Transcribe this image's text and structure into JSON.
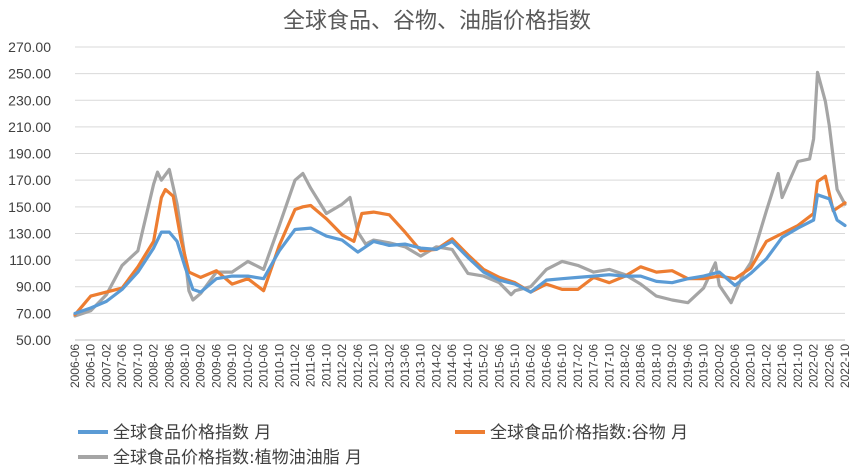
{
  "chart_data": {
    "type": "line",
    "title": "全球食品、谷物、油脂价格指数",
    "xlabel": "",
    "ylabel": "",
    "ylim": [
      50,
      270
    ],
    "yticks": [
      "50.00",
      "70.00",
      "90.00",
      "110.00",
      "130.00",
      "150.00",
      "170.00",
      "190.00",
      "210.00",
      "230.00",
      "250.00",
      "270.00"
    ],
    "x_start": "2006-06",
    "x_end": "2022-10",
    "xticks": [
      "2006-06",
      "2006-10",
      "2007-02",
      "2007-06",
      "2007-10",
      "2008-02",
      "2008-06",
      "2008-10",
      "2009-02",
      "2009-06",
      "2009-10",
      "2010-02",
      "2010-06",
      "2010-10",
      "2011-02",
      "2011-06",
      "2011-10",
      "2012-02",
      "2012-06",
      "2012-10",
      "2013-02",
      "2013-06",
      "2013-10",
      "2014-02",
      "2014-06",
      "2014-10",
      "2015-02",
      "2015-06",
      "2015-10",
      "2016-02",
      "2016-06",
      "2016-10",
      "2017-02",
      "2017-06",
      "2017-10",
      "2018-02",
      "2018-06",
      "2018-10",
      "2019-02",
      "2019-06",
      "2019-10",
      "2020-02",
      "2020-06",
      "2020-10",
      "2021-02",
      "2021-06",
      "2021-10",
      "2022-02",
      "2022-06",
      "2022-10"
    ],
    "grid": true,
    "legend_position": "bottom",
    "series": [
      {
        "name": "全球食品价格指数 月",
        "color": "#5b9bd5",
        "points": [
          [
            "2006-06",
            70
          ],
          [
            "2006-10",
            74
          ],
          [
            "2007-02",
            79
          ],
          [
            "2007-06",
            88
          ],
          [
            "2007-10",
            101
          ],
          [
            "2008-02",
            119
          ],
          [
            "2008-04",
            131
          ],
          [
            "2008-06",
            131
          ],
          [
            "2008-08",
            124
          ],
          [
            "2008-10",
            105
          ],
          [
            "2008-12",
            88
          ],
          [
            "2009-02",
            86
          ],
          [
            "2009-06",
            96
          ],
          [
            "2009-10",
            98
          ],
          [
            "2010-02",
            98
          ],
          [
            "2010-06",
            96
          ],
          [
            "2010-10",
            117
          ],
          [
            "2011-02",
            133
          ],
          [
            "2011-06",
            134
          ],
          [
            "2011-10",
            128
          ],
          [
            "2012-02",
            125
          ],
          [
            "2012-06",
            116
          ],
          [
            "2012-10",
            124
          ],
          [
            "2013-02",
            121
          ],
          [
            "2013-06",
            122
          ],
          [
            "2013-10",
            119
          ],
          [
            "2014-02",
            118
          ],
          [
            "2014-06",
            124
          ],
          [
            "2014-10",
            112
          ],
          [
            "2015-02",
            101
          ],
          [
            "2015-06",
            95
          ],
          [
            "2015-10",
            92
          ],
          [
            "2016-02",
            86
          ],
          [
            "2016-06",
            95
          ],
          [
            "2016-10",
            96
          ],
          [
            "2017-02",
            97
          ],
          [
            "2017-06",
            98
          ],
          [
            "2017-10",
            99
          ],
          [
            "2018-02",
            98
          ],
          [
            "2018-06",
            98
          ],
          [
            "2018-10",
            94
          ],
          [
            "2019-02",
            93
          ],
          [
            "2019-06",
            96
          ],
          [
            "2019-10",
            98
          ],
          [
            "2020-02",
            101
          ],
          [
            "2020-06",
            91
          ],
          [
            "2020-10",
            100
          ],
          [
            "2021-02",
            111
          ],
          [
            "2021-06",
            127
          ],
          [
            "2021-10",
            134
          ],
          [
            "2022-02",
            140
          ],
          [
            "2022-03",
            159
          ],
          [
            "2022-06",
            156
          ],
          [
            "2022-08",
            140
          ],
          [
            "2022-10",
            136
          ]
        ]
      },
      {
        "name": "全球食品价格指数:谷物 月",
        "color": "#ed7d31",
        "points": [
          [
            "2006-06",
            69
          ],
          [
            "2006-10",
            83
          ],
          [
            "2007-02",
            86
          ],
          [
            "2007-06",
            89
          ],
          [
            "2007-10",
            105
          ],
          [
            "2008-02",
            124
          ],
          [
            "2008-04",
            157
          ],
          [
            "2008-05",
            163
          ],
          [
            "2008-07",
            158
          ],
          [
            "2008-09",
            125
          ],
          [
            "2008-11",
            101
          ],
          [
            "2009-02",
            97
          ],
          [
            "2009-06",
            102
          ],
          [
            "2009-10",
            92
          ],
          [
            "2010-02",
            96
          ],
          [
            "2010-06",
            87
          ],
          [
            "2010-10",
            121
          ],
          [
            "2011-02",
            148
          ],
          [
            "2011-04",
            150
          ],
          [
            "2011-06",
            151
          ],
          [
            "2011-10",
            141
          ],
          [
            "2012-02",
            129
          ],
          [
            "2012-05",
            124
          ],
          [
            "2012-07",
            145
          ],
          [
            "2012-10",
            146
          ],
          [
            "2013-02",
            144
          ],
          [
            "2013-06",
            131
          ],
          [
            "2013-10",
            117
          ],
          [
            "2014-02",
            118
          ],
          [
            "2014-06",
            126
          ],
          [
            "2014-10",
            114
          ],
          [
            "2015-02",
            103
          ],
          [
            "2015-06",
            97
          ],
          [
            "2015-10",
            93
          ],
          [
            "2016-02",
            86
          ],
          [
            "2016-06",
            92
          ],
          [
            "2016-10",
            88
          ],
          [
            "2017-02",
            88
          ],
          [
            "2017-06",
            97
          ],
          [
            "2017-10",
            93
          ],
          [
            "2018-02",
            98
          ],
          [
            "2018-06",
            105
          ],
          [
            "2018-10",
            101
          ],
          [
            "2019-02",
            102
          ],
          [
            "2019-06",
            96
          ],
          [
            "2019-10",
            96
          ],
          [
            "2020-02",
            98
          ],
          [
            "2020-06",
            96
          ],
          [
            "2020-10",
            104
          ],
          [
            "2021-02",
            124
          ],
          [
            "2021-06",
            130
          ],
          [
            "2021-10",
            136
          ],
          [
            "2022-02",
            145
          ],
          [
            "2022-03",
            169
          ],
          [
            "2022-05",
            173
          ],
          [
            "2022-07",
            147
          ],
          [
            "2022-10",
            153
          ]
        ]
      },
      {
        "name": "全球食品价格指数:植物油油脂 月",
        "color": "#a5a5a5",
        "points": [
          [
            "2006-06",
            68
          ],
          [
            "2006-10",
            72
          ],
          [
            "2007-02",
            84
          ],
          [
            "2007-06",
            106
          ],
          [
            "2007-10",
            117
          ],
          [
            "2008-02",
            167
          ],
          [
            "2008-03",
            176
          ],
          [
            "2008-04",
            170
          ],
          [
            "2008-06",
            178
          ],
          [
            "2008-08",
            152
          ],
          [
            "2008-10",
            112
          ],
          [
            "2008-11",
            87
          ],
          [
            "2008-12",
            80
          ],
          [
            "2009-02",
            85
          ],
          [
            "2009-06",
            101
          ],
          [
            "2009-10",
            101
          ],
          [
            "2010-02",
            109
          ],
          [
            "2010-06",
            103
          ],
          [
            "2010-10",
            136
          ],
          [
            "2011-02",
            170
          ],
          [
            "2011-04",
            175
          ],
          [
            "2011-06",
            164
          ],
          [
            "2011-10",
            145
          ],
          [
            "2012-02",
            152
          ],
          [
            "2012-04",
            157
          ],
          [
            "2012-06",
            131
          ],
          [
            "2012-08",
            122
          ],
          [
            "2012-10",
            125
          ],
          [
            "2013-02",
            123
          ],
          [
            "2013-06",
            120
          ],
          [
            "2013-10",
            113
          ],
          [
            "2014-02",
            120
          ],
          [
            "2014-06",
            118
          ],
          [
            "2014-10",
            100
          ],
          [
            "2015-02",
            98
          ],
          [
            "2015-06",
            93
          ],
          [
            "2015-09",
            84
          ],
          [
            "2015-10",
            87
          ],
          [
            "2016-02",
            90
          ],
          [
            "2016-06",
            103
          ],
          [
            "2016-10",
            109
          ],
          [
            "2017-02",
            106
          ],
          [
            "2017-06",
            101
          ],
          [
            "2017-10",
            103
          ],
          [
            "2018-02",
            99
          ],
          [
            "2018-06",
            92
          ],
          [
            "2018-10",
            83
          ],
          [
            "2019-02",
            80
          ],
          [
            "2019-06",
            78
          ],
          [
            "2019-10",
            89
          ],
          [
            "2020-01",
            108
          ],
          [
            "2020-02",
            91
          ],
          [
            "2020-05",
            78
          ],
          [
            "2020-08",
            99
          ],
          [
            "2020-10",
            108
          ],
          [
            "2021-02",
            147
          ],
          [
            "2021-05",
            175
          ],
          [
            "2021-06",
            157
          ],
          [
            "2021-10",
            184
          ],
          [
            "2022-01",
            186
          ],
          [
            "2022-02",
            201
          ],
          [
            "2022-03",
            251
          ],
          [
            "2022-05",
            229
          ],
          [
            "2022-06",
            211
          ],
          [
            "2022-08",
            163
          ],
          [
            "2022-10",
            152
          ]
        ]
      }
    ]
  }
}
